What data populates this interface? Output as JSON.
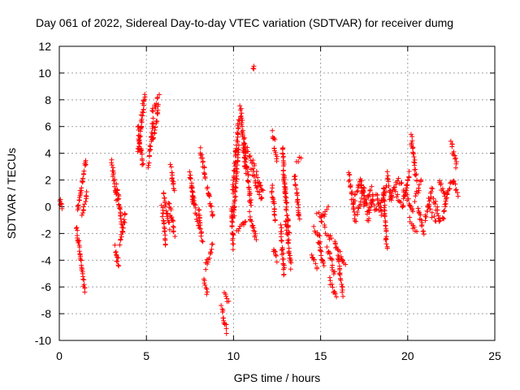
{
  "chart_data": {
    "type": "scatter",
    "title": "Day 061 of 2022, Sidereal Day-to-day VTEC variation (SDTVAR) for receiver dumg",
    "xlabel": "GPS time / hours",
    "ylabel": "SDTVAR / TECUs",
    "xlim": [
      0,
      25
    ],
    "ylim": [
      -10,
      12
    ],
    "xticks": [
      0,
      5,
      10,
      15,
      20,
      25
    ],
    "yticks": [
      -10,
      -8,
      -6,
      -4,
      -2,
      0,
      2,
      4,
      6,
      8,
      10,
      12
    ],
    "xtick_labels": [
      "0",
      "5",
      "10",
      "15",
      "20",
      "25"
    ],
    "ytick_labels": [
      "-10",
      "-8",
      "-6",
      "-4",
      "-2",
      "0",
      "2",
      "4",
      "6",
      "8",
      "10",
      "12"
    ],
    "grid": true,
    "marker": "+",
    "color": "#ff0000",
    "series": [
      {
        "name": "SDTVAR",
        "segments": [
          {
            "x0": 0.0,
            "y0": 0.8,
            "x1": 0.15,
            "y1": -0.1
          },
          {
            "x0": 1.0,
            "y0": -1.6,
            "x1": 1.45,
            "y1": -6.2
          },
          {
            "x0": 1.05,
            "y0": -0.3,
            "x1": 1.55,
            "y1": 3.5
          },
          {
            "x0": 1.3,
            "y0": -0.5,
            "x1": 1.6,
            "y1": 1.0
          },
          {
            "x0": 3.0,
            "y0": 3.4,
            "x1": 3.3,
            "y1": 0.5
          },
          {
            "x0": 3.2,
            "y0": -3.0,
            "x1": 3.4,
            "y1": -4.5
          },
          {
            "x0": 3.3,
            "y0": 1.5,
            "x1": 3.6,
            "y1": -1.5
          },
          {
            "x0": 3.5,
            "y0": -2.8,
            "x1": 3.8,
            "y1": -0.5
          },
          {
            "x0": 4.5,
            "y0": 4.0,
            "x1": 4.9,
            "y1": 8.5
          },
          {
            "x0": 4.5,
            "y0": 6.0,
            "x1": 4.8,
            "y1": 3.0
          },
          {
            "x0": 5.1,
            "y0": 3.0,
            "x1": 5.4,
            "y1": 6.5
          },
          {
            "x0": 5.3,
            "y0": 7.0,
            "x1": 5.7,
            "y1": 8.2
          },
          {
            "x0": 5.4,
            "y0": 5.0,
            "x1": 5.7,
            "y1": 7.5
          },
          {
            "x0": 5.9,
            "y0": 0.0,
            "x1": 6.1,
            "y1": -2.8
          },
          {
            "x0": 6.0,
            "y0": 1.0,
            "x1": 6.3,
            "y1": -1.5
          },
          {
            "x0": 6.3,
            "y0": 0.2,
            "x1": 6.6,
            "y1": -2.0
          },
          {
            "x0": 6.4,
            "y0": 3.0,
            "x1": 6.6,
            "y1": 1.0
          },
          {
            "x0": 7.5,
            "y0": 2.5,
            "x1": 7.7,
            "y1": 0.0
          },
          {
            "x0": 7.6,
            "y0": 1.5,
            "x1": 8.0,
            "y1": -1.5
          },
          {
            "x0": 8.0,
            "y0": 0.0,
            "x1": 8.2,
            "y1": -2.5
          },
          {
            "x0": 8.1,
            "y0": 4.2,
            "x1": 8.4,
            "y1": 2.0
          },
          {
            "x0": 8.3,
            "y0": -5.5,
            "x1": 8.5,
            "y1": -6.5
          },
          {
            "x0": 8.4,
            "y0": -4.5,
            "x1": 8.8,
            "y1": -2.8
          },
          {
            "x0": 8.5,
            "y0": 1.5,
            "x1": 8.8,
            "y1": -0.8
          },
          {
            "x0": 9.3,
            "y0": -7.5,
            "x1": 9.6,
            "y1": -9.3
          },
          {
            "x0": 9.5,
            "y0": -6.5,
            "x1": 9.7,
            "y1": -7.2
          },
          {
            "x0": 9.9,
            "y0": 0.0,
            "x1": 10.0,
            "y1": -3.0
          },
          {
            "x0": 9.95,
            "y0": 1.2,
            "x1": 10.3,
            "y1": 6.5
          },
          {
            "x0": 10.0,
            "y0": -1.0,
            "x1": 10.3,
            "y1": 4.5
          },
          {
            "x0": 10.2,
            "y0": -2.0,
            "x1": 10.7,
            "y1": -1.0
          },
          {
            "x0": 10.4,
            "y0": 7.5,
            "x1": 10.7,
            "y1": 2.5
          },
          {
            "x0": 10.6,
            "y0": 5.0,
            "x1": 11.0,
            "y1": 0.0
          },
          {
            "x0": 10.7,
            "y0": 4.5,
            "x1": 11.2,
            "y1": 3.0
          },
          {
            "x0": 10.9,
            "y0": -0.5,
            "x1": 11.3,
            "y1": -2.5
          },
          {
            "x0": 11.0,
            "y0": 3.0,
            "x1": 11.6,
            "y1": 0.5
          },
          {
            "x0": 11.1,
            "y0": 10.3,
            "x1": 11.15,
            "y1": 10.3
          },
          {
            "x0": 11.3,
            "y0": 2.5,
            "x1": 11.7,
            "y1": 1.0
          },
          {
            "x0": 12.2,
            "y0": 5.5,
            "x1": 12.4,
            "y1": 4.8
          },
          {
            "x0": 12.2,
            "y0": 1.5,
            "x1": 12.4,
            "y1": -1.0
          },
          {
            "x0": 12.3,
            "y0": 4.5,
            "x1": 12.5,
            "y1": 3.5
          },
          {
            "x0": 12.3,
            "y0": -3.0,
            "x1": 12.5,
            "y1": -4.0
          },
          {
            "x0": 12.7,
            "y0": -1.5,
            "x1": 12.9,
            "y1": -5.0
          },
          {
            "x0": 12.8,
            "y0": 4.5,
            "x1": 13.0,
            "y1": 0.5
          },
          {
            "x0": 12.9,
            "y0": 2.0,
            "x1": 13.2,
            "y1": -2.0
          },
          {
            "x0": 13.0,
            "y0": -1.0,
            "x1": 13.3,
            "y1": -4.5
          },
          {
            "x0": 13.5,
            "y0": 2.5,
            "x1": 13.8,
            "y1": -1.0
          },
          {
            "x0": 13.6,
            "y0": 3.5,
            "x1": 13.9,
            "y1": 3.5
          },
          {
            "x0": 14.5,
            "y0": -3.5,
            "x1": 14.8,
            "y1": -4.5
          },
          {
            "x0": 14.6,
            "y0": -1.5,
            "x1": 15.0,
            "y1": -2.5
          },
          {
            "x0": 14.8,
            "y0": -0.5,
            "x1": 15.1,
            "y1": -1.0
          },
          {
            "x0": 14.9,
            "y0": -2.5,
            "x1": 15.2,
            "y1": -4.5
          },
          {
            "x0": 15.0,
            "y0": -1.0,
            "x1": 15.4,
            "y1": 0.0
          },
          {
            "x0": 15.2,
            "y0": -1.5,
            "x1": 15.6,
            "y1": -2.5
          },
          {
            "x0": 15.4,
            "y0": -3.0,
            "x1": 15.8,
            "y1": -5.0
          },
          {
            "x0": 15.5,
            "y0": -5.5,
            "x1": 15.9,
            "y1": -6.8
          },
          {
            "x0": 15.8,
            "y0": -2.5,
            "x1": 16.1,
            "y1": -4.0
          },
          {
            "x0": 16.0,
            "y0": -4.0,
            "x1": 16.3,
            "y1": -6.5
          },
          {
            "x0": 16.1,
            "y0": -3.5,
            "x1": 16.4,
            "y1": -4.5
          },
          {
            "x0": 16.6,
            "y0": 2.5,
            "x1": 17.0,
            "y1": -1.0
          },
          {
            "x0": 16.9,
            "y0": 0.5,
            "x1": 17.3,
            "y1": 2.0
          },
          {
            "x0": 17.1,
            "y0": -0.5,
            "x1": 17.5,
            "y1": 1.5
          },
          {
            "x0": 17.3,
            "y0": 2.0,
            "x1": 17.7,
            "y1": -0.5
          },
          {
            "x0": 17.5,
            "y0": 0.0,
            "x1": 17.9,
            "y1": 1.5
          },
          {
            "x0": 17.7,
            "y0": -1.0,
            "x1": 18.0,
            "y1": 1.0
          },
          {
            "x0": 17.9,
            "y0": 0.5,
            "x1": 18.3,
            "y1": -0.5
          },
          {
            "x0": 18.2,
            "y0": 1.0,
            "x1": 18.5,
            "y1": -0.5
          },
          {
            "x0": 18.4,
            "y0": 0.0,
            "x1": 18.8,
            "y1": 1.5
          },
          {
            "x0": 18.6,
            "y0": 1.5,
            "x1": 18.8,
            "y1": -3.0
          },
          {
            "x0": 18.8,
            "y0": 2.5,
            "x1": 19.1,
            "y1": 0.5
          },
          {
            "x0": 19.0,
            "y0": 0.5,
            "x1": 19.4,
            "y1": 2.0
          },
          {
            "x0": 19.3,
            "y0": 1.0,
            "x1": 19.7,
            "y1": 0.0
          },
          {
            "x0": 19.5,
            "y0": 2.0,
            "x1": 19.9,
            "y1": 1.0
          },
          {
            "x0": 19.7,
            "y0": 0.0,
            "x1": 20.1,
            "y1": 2.5
          },
          {
            "x0": 19.9,
            "y0": 1.0,
            "x1": 20.3,
            "y1": -0.5
          },
          {
            "x0": 20.1,
            "y0": -1.0,
            "x1": 20.5,
            "y1": -2.0
          },
          {
            "x0": 20.2,
            "y0": 5.3,
            "x1": 20.5,
            "y1": 2.0
          },
          {
            "x0": 20.4,
            "y0": 0.5,
            "x1": 20.8,
            "y1": 2.0
          },
          {
            "x0": 20.6,
            "y0": 0.0,
            "x1": 20.9,
            "y1": -2.0
          },
          {
            "x0": 21.0,
            "y0": -1.0,
            "x1": 21.4,
            "y1": 1.5
          },
          {
            "x0": 21.2,
            "y0": 0.0,
            "x1": 21.6,
            "y1": -1.0
          },
          {
            "x0": 21.5,
            "y0": 0.5,
            "x1": 21.9,
            "y1": -1.2
          },
          {
            "x0": 21.8,
            "y0": 2.0,
            "x1": 22.2,
            "y1": 0.5
          },
          {
            "x0": 22.0,
            "y0": -1.0,
            "x1": 22.3,
            "y1": 1.0
          },
          {
            "x0": 22.3,
            "y0": 1.0,
            "x1": 22.6,
            "y1": 2.0
          },
          {
            "x0": 22.5,
            "y0": 4.8,
            "x1": 22.8,
            "y1": 3.0
          },
          {
            "x0": 22.6,
            "y0": 2.0,
            "x1": 22.9,
            "y1": 1.0
          }
        ]
      }
    ]
  }
}
